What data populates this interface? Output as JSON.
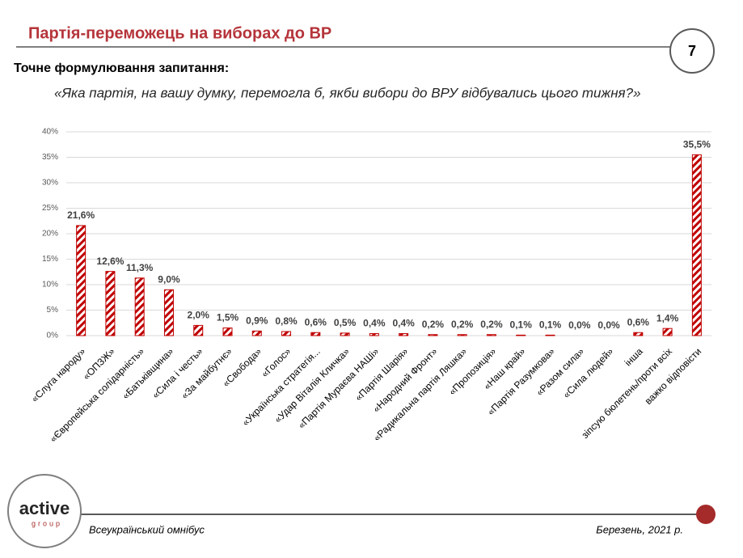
{
  "header": {
    "title": "Партія-переможець на виборах до ВР",
    "page_number": "7",
    "question_label": "Точне формулювання запитання:",
    "question": "«Яка партія, на вашу думку, перемогла б, якби вибори до ВРУ відбувались цього тижня?»"
  },
  "chart_data": {
    "type": "bar",
    "color": "#c00000",
    "categories": [
      "«Слуга народу»",
      "«ОПЗЖ»",
      "«Європейська солідарність»",
      "«Батьківщина»",
      "«Сила і честь»",
      "«За майбутнє»",
      "«Свобода»",
      "«Голос»",
      "«Українська стратегія...",
      "«Удар Віталія Кличка»",
      "«Партія Мураєва НАШі»",
      "«Партія Шарія»",
      "«Народний Фронт»",
      "«Радикальна партія Ляшка»",
      "«Пропозиція»",
      "«Наш край»",
      "«Партія Разумкова»",
      "«Разом сила»",
      "«Сила людей»",
      "інша",
      "зіпсую бюлетень/проти всіх",
      "важко відповісти"
    ],
    "values": [
      21.6,
      12.6,
      11.3,
      9.0,
      2.0,
      1.5,
      0.9,
      0.8,
      0.6,
      0.5,
      0.4,
      0.4,
      0.2,
      0.2,
      0.2,
      0.1,
      0.1,
      0.0,
      0.0,
      0.6,
      1.4,
      35.5
    ],
    "value_labels": [
      "21,6%",
      "12,6%",
      "11,3%",
      "9,0%",
      "2,0%",
      "1,5%",
      "0,9%",
      "0,8%",
      "0,6%",
      "0,5%",
      "0,4%",
      "0,4%",
      "0,2%",
      "0,2%",
      "0,2%",
      "0,1%",
      "0,1%",
      "0,0%",
      "0,0%",
      "0,6%",
      "1,4%",
      "35,5%"
    ],
    "ylim": [
      0,
      40
    ],
    "yticks": [
      {
        "value": 0,
        "label": "0%"
      },
      {
        "value": 5,
        "label": "5%"
      },
      {
        "value": 10,
        "label": "10%"
      },
      {
        "value": 15,
        "label": "15%"
      },
      {
        "value": 20,
        "label": "20%"
      },
      {
        "value": 25,
        "label": "25%"
      },
      {
        "value": 30,
        "label": "30%"
      },
      {
        "value": 35,
        "label": "35%"
      },
      {
        "value": 40,
        "label": "40%"
      }
    ],
    "grid": true
  },
  "footer": {
    "logo_top": "active",
    "logo_bottom": "group",
    "left": "Всеукраїнський омнібус",
    "right": "Березень, 2021 р."
  }
}
